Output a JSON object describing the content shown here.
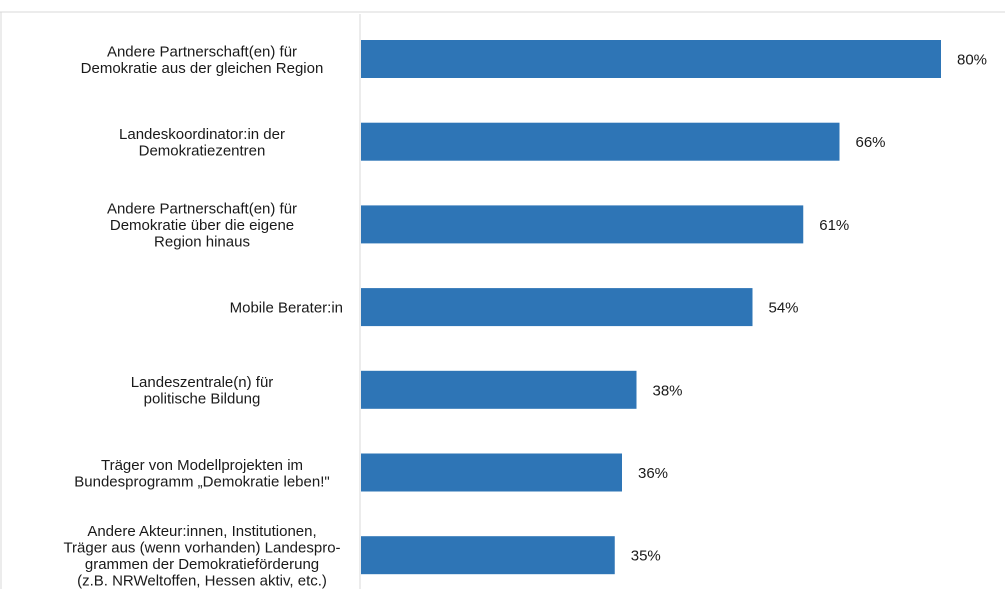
{
  "chart_data": {
    "type": "bar",
    "orientation": "horizontal",
    "title": "",
    "xlabel": "",
    "ylabel": "",
    "xlim": [
      0,
      100
    ],
    "grid": false,
    "legend": "none",
    "bar_color": "#2E75B6",
    "categories": [
      [
        "Andere Partnerschaft(en) für",
        "Demokratie aus der gleichen Region"
      ],
      [
        "Landeskoordinator:in der",
        "Demokratiezentren"
      ],
      [
        "Andere Partnerschaft(en) für",
        "Demokratie über die eigene",
        "Region hinaus"
      ],
      [
        "Mobile Berater:in"
      ],
      [
        "Landeszentrale(n) für",
        "politische Bildung"
      ],
      [
        "Träger von Modellprojekten im",
        "Bundesprogramm „Demokratie leben!\""
      ],
      [
        "Andere Akteur:innen, Institutionen,",
        "Träger aus (wenn vorhanden) Landespro-",
        "grammen der Demokratieförderung",
        "(z.B. NRWeltoffen, Hessen aktiv, etc.)"
      ]
    ],
    "values": [
      80,
      66,
      61,
      54,
      38,
      36,
      35
    ],
    "value_labels": [
      "80%",
      "66%",
      "61%",
      "54%",
      "38%",
      "36%",
      "35%"
    ]
  }
}
